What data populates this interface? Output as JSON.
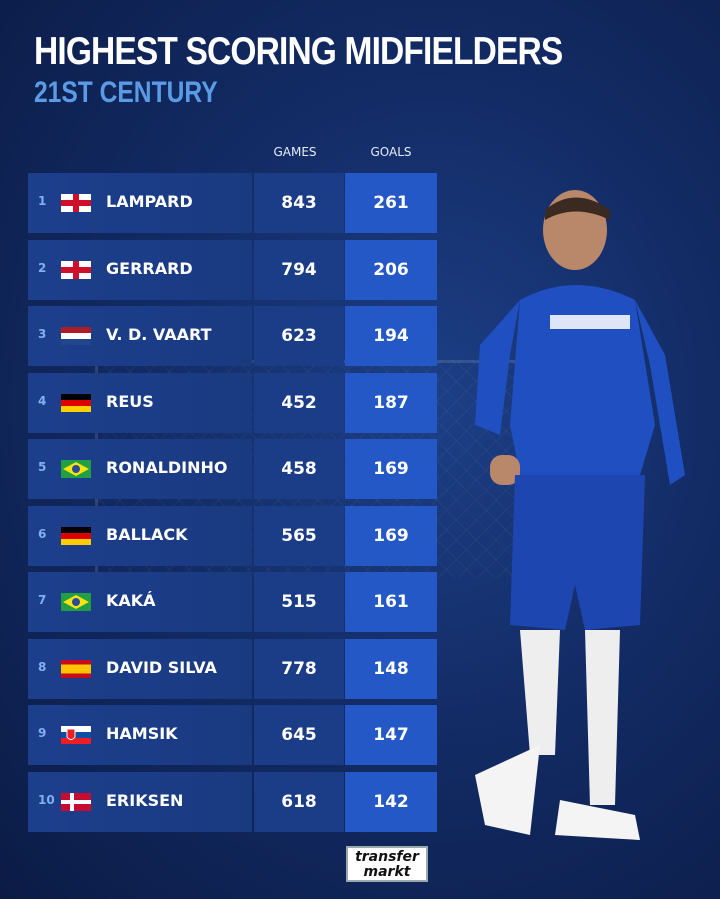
{
  "title": "HIGHEST SCORING MIDFIELDERS",
  "subtitle": "21ST CENTURY",
  "logo_text": "transfermarkt",
  "chart_data": {
    "type": "table",
    "title": "HIGHEST SCORING MIDFIELDERS",
    "subtitle": "21ST CENTURY",
    "columns": [
      "GAMES",
      "GOALS"
    ],
    "rows": [
      {
        "rank": "1",
        "flag": "england",
        "name": "LAMPARD",
        "games": "843",
        "goals": "261"
      },
      {
        "rank": "2",
        "flag": "england",
        "name": "GERRARD",
        "games": "794",
        "goals": "206"
      },
      {
        "rank": "3",
        "flag": "netherlands",
        "name": "V. D. VAART",
        "games": "623",
        "goals": "194"
      },
      {
        "rank": "4",
        "flag": "germany",
        "name": "REUS",
        "games": "452",
        "goals": "187"
      },
      {
        "rank": "5",
        "flag": "brazil",
        "name": "RONALDINHO",
        "games": "458",
        "goals": "169"
      },
      {
        "rank": "6",
        "flag": "germany",
        "name": "BALLACK",
        "games": "565",
        "goals": "169"
      },
      {
        "rank": "7",
        "flag": "brazil",
        "name": "KAKÁ",
        "games": "515",
        "goals": "161"
      },
      {
        "rank": "8",
        "flag": "spain",
        "name": "DAVID SILVA",
        "games": "778",
        "goals": "148"
      },
      {
        "rank": "9",
        "flag": "slovakia",
        "name": "HAMSIK",
        "games": "645",
        "goals": "147"
      },
      {
        "rank": "10",
        "flag": "denmark",
        "name": "ERIKSEN",
        "games": "618",
        "goals": "142"
      }
    ]
  },
  "colors": {
    "goals_cell": "#2358c6",
    "row_bg": "#1c3f8d",
    "subtitle": "#5b9be6"
  }
}
